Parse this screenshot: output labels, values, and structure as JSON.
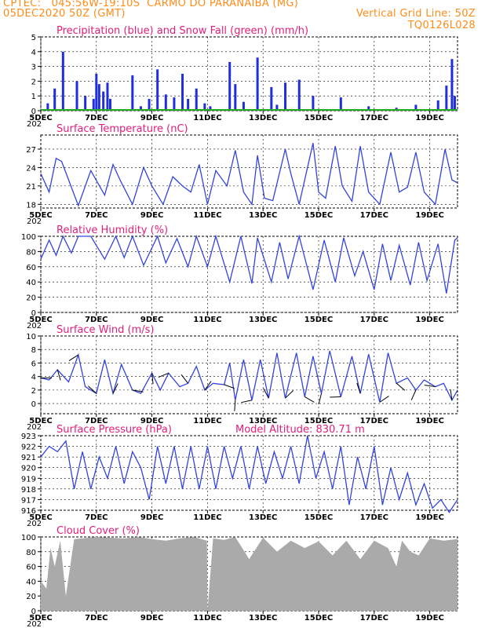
{
  "header": {
    "line1_left": "CPTEC:   045:56W-19:10S  CARMO DO PARANAIBA (MG)",
    "line2_left": "05DEC2020 50Z (GMT)",
    "line2_right": "Vertical Grid Line: 50Z",
    "line3_right": "TQ0126L028"
  },
  "colors": {
    "header": "#ff8c1a",
    "title": "#e0207a",
    "line": "#3344dd",
    "precip": "#1f2fdd",
    "snow": "#22aa22",
    "cloud": "#aaaaaa"
  },
  "x_axis": {
    "labels": [
      "5DEC",
      "7DEC",
      "9DEC",
      "11DEC",
      "13DEC",
      "15DEC",
      "17DEC",
      "19DEC"
    ],
    "label_days": [
      5,
      7,
      9,
      11,
      13,
      15,
      17,
      19
    ],
    "range_days": [
      5,
      20
    ],
    "year_stub": "202"
  },
  "chart_data": [
    {
      "type": "bar",
      "title": "Precipitation (blue) and Snow Fall (green) (mm/h)",
      "ylim": [
        0,
        5
      ],
      "yticks": [
        "0",
        "1",
        "2",
        "3",
        "4",
        "5"
      ],
      "series": [
        {
          "name": "Precipitation",
          "x_days": [
            5.25,
            5.5,
            5.8,
            6.3,
            6.6,
            6.9,
            7.0,
            7.1,
            7.25,
            7.4,
            7.5,
            8.3,
            8.6,
            8.9,
            9.2,
            9.5,
            9.8,
            10.1,
            10.3,
            10.6,
            10.9,
            11.1,
            11.8,
            12.0,
            12.3,
            12.8,
            13.3,
            13.5,
            13.8,
            14.3,
            14.8,
            15.8,
            16.8,
            17.8,
            18.5,
            19.3,
            19.6,
            19.8,
            19.9
          ],
          "values": [
            0.5,
            1.5,
            4.0,
            2.0,
            1.0,
            0.8,
            2.5,
            1.8,
            1.3,
            1.9,
            0.8,
            2.4,
            0.3,
            0.8,
            2.8,
            1.1,
            0.9,
            2.5,
            0.8,
            1.5,
            0.5,
            0.3,
            3.3,
            1.8,
            0.6,
            3.6,
            1.6,
            0.4,
            1.9,
            2.1,
            1.0,
            0.9,
            0.3,
            0.2,
            0.4,
            0.7,
            1.7,
            3.5,
            1.0
          ]
        },
        {
          "name": "Snow Fall",
          "x_days": [
            5,
            20
          ],
          "values": [
            0,
            0
          ]
        }
      ]
    },
    {
      "type": "line",
      "title": "Surface Temperature (nC)",
      "ylim": [
        17.4,
        29.3
      ],
      "yticks": [
        "18",
        "21",
        "24",
        "27"
      ],
      "series": [
        {
          "name": "Temperature",
          "x_days": [
            5.0,
            5.3,
            5.55,
            5.75,
            6.0,
            6.35,
            6.8,
            7.3,
            7.6,
            7.85,
            8.3,
            8.7,
            9.0,
            9.4,
            9.75,
            10.1,
            10.4,
            10.7,
            11.0,
            11.3,
            11.7,
            12.0,
            12.3,
            12.6,
            12.8,
            13.05,
            13.35,
            13.8,
            14.0,
            14.3,
            14.8,
            15.0,
            15.25,
            15.6,
            15.85,
            16.2,
            16.5,
            16.8,
            17.2,
            17.6,
            17.9,
            18.2,
            18.5,
            18.8,
            19.2,
            19.55,
            19.8,
            20.0
          ],
          "values": [
            23,
            20,
            25.5,
            25,
            22,
            17.8,
            23.5,
            19.5,
            24.5,
            22,
            18,
            24,
            21,
            18,
            22.5,
            21,
            20,
            24.5,
            18,
            23.5,
            21,
            26.8,
            20,
            18,
            26,
            19,
            18.6,
            27,
            23,
            18,
            28,
            20,
            19,
            27.5,
            21,
            18.5,
            27.5,
            20,
            18,
            26.5,
            20,
            20.8,
            26.5,
            20,
            18,
            27,
            22,
            21.5
          ]
        }
      ]
    },
    {
      "type": "line",
      "title": "Relative Humidity (%)",
      "ylim": [
        0,
        100
      ],
      "yticks": [
        "0",
        "20",
        "40",
        "60",
        "80",
        "100"
      ],
      "series": [
        {
          "name": "Humidity",
          "x_days": [
            5.0,
            5.3,
            5.55,
            5.8,
            6.1,
            6.35,
            6.8,
            7.3,
            7.7,
            8.0,
            8.3,
            8.7,
            9.2,
            9.5,
            9.9,
            10.3,
            10.6,
            11.0,
            11.3,
            11.8,
            12.2,
            12.6,
            12.8,
            13.3,
            13.6,
            13.9,
            14.3,
            14.8,
            15.2,
            15.6,
            15.9,
            16.3,
            16.6,
            17.0,
            17.3,
            17.6,
            17.9,
            18.3,
            18.6,
            18.9,
            19.3,
            19.6,
            19.9,
            20.0
          ],
          "values": [
            70,
            95,
            75,
            100,
            78,
            100,
            100,
            70,
            100,
            72,
            100,
            62,
            100,
            65,
            97,
            60,
            100,
            60,
            100,
            40,
            100,
            38,
            98,
            40,
            92,
            44,
            100,
            30,
            95,
            40,
            98,
            48,
            80,
            30,
            90,
            42,
            88,
            36,
            92,
            42,
            90,
            25,
            95,
            98
          ]
        }
      ]
    },
    {
      "type": "line",
      "title": "Surface Wind (m/s)",
      "ylim": [
        -1.5,
        10
      ],
      "yticks": [
        "0",
        "2",
        "4",
        "6",
        "8",
        "10"
      ],
      "series": [
        {
          "name": "Wind speed",
          "x_days": [
            5.0,
            5.3,
            5.6,
            6.0,
            6.35,
            6.6,
            7.0,
            7.3,
            7.6,
            7.9,
            8.3,
            8.6,
            9.0,
            9.3,
            9.6,
            10.0,
            10.3,
            10.6,
            10.9,
            11.2,
            11.6,
            11.8,
            12.0,
            12.3,
            12.6,
            12.9,
            13.2,
            13.5,
            13.8,
            14.2,
            14.5,
            14.8,
            15.1,
            15.4,
            15.8,
            16.2,
            16.5,
            16.8,
            17.2,
            17.5,
            17.8,
            18.2,
            18.5,
            18.8,
            19.2,
            19.5,
            19.8,
            20.0
          ],
          "values": [
            3.8,
            3.5,
            5.0,
            3.2,
            7.2,
            2.5,
            1.5,
            6.5,
            1.5,
            5.8,
            2.0,
            1.5,
            4.5,
            2.0,
            4.5,
            2.5,
            3.0,
            5.5,
            2.0,
            3.0,
            2.8,
            6.0,
            0.5,
            6.5,
            0.5,
            6.5,
            0.8,
            7.5,
            0.8,
            7.5,
            1.0,
            7.0,
            1.5,
            7.8,
            1.0,
            7.0,
            1.5,
            7.3,
            0.2,
            7.5,
            3.0,
            3.8,
            2.0,
            3.5,
            2.5,
            3.0,
            0.5,
            2.0
          ]
        }
      ]
    },
    {
      "type": "line",
      "title": "Surface Pressure (hPa)",
      "annotation": "Model Altitude: 830.71 m",
      "ylim": [
        916,
        923
      ],
      "yticks": [
        "916",
        "917",
        "918",
        "919",
        "920",
        "921",
        "922",
        "923"
      ],
      "series": [
        {
          "name": "Pressure",
          "x_days": [
            5.0,
            5.3,
            5.6,
            5.9,
            6.2,
            6.5,
            6.8,
            7.1,
            7.4,
            7.7,
            8.0,
            8.3,
            8.6,
            8.9,
            9.2,
            9.5,
            9.8,
            10.1,
            10.4,
            10.7,
            11.0,
            11.3,
            11.6,
            11.9,
            12.2,
            12.5,
            12.8,
            13.1,
            13.4,
            13.7,
            14.0,
            14.3,
            14.6,
            14.9,
            15.2,
            15.5,
            15.8,
            16.1,
            16.4,
            16.7,
            17.0,
            17.3,
            17.6,
            17.9,
            18.2,
            18.5,
            18.8,
            19.1,
            19.4,
            19.7,
            20.0
          ],
          "values": [
            921,
            922,
            921.5,
            922.5,
            918,
            921.5,
            918,
            921,
            919,
            922,
            918.5,
            921.5,
            920,
            917,
            922,
            918.5,
            922,
            918,
            922,
            918,
            922,
            918,
            922,
            919,
            922,
            918,
            922,
            918.5,
            921.5,
            919,
            922,
            918.5,
            923,
            919,
            921.5,
            918,
            922,
            916.5,
            921,
            918,
            922,
            916.5,
            920,
            917,
            919.5,
            916.5,
            918.5,
            916.2,
            917,
            915.8,
            917
          ]
        }
      ]
    },
    {
      "type": "area",
      "title": "Cloud Cover (%)",
      "ylim": [
        0,
        100
      ],
      "yticks": [
        "0",
        "20",
        "40",
        "60",
        "80",
        "100"
      ],
      "series": [
        {
          "name": "Cloud cover",
          "x_days": [
            5.0,
            5.2,
            5.35,
            5.5,
            5.7,
            5.9,
            6.2,
            7.0,
            8.0,
            8.5,
            9.0,
            9.5,
            10.0,
            10.5,
            10.98,
            11.0,
            11.2,
            11.6,
            12.0,
            12.5,
            13.0,
            13.5,
            14.0,
            14.5,
            15.0,
            15.5,
            16.0,
            16.5,
            17.0,
            17.5,
            17.8,
            18.0,
            18.3,
            18.6,
            19.0,
            19.5,
            20.0
          ],
          "values": [
            40,
            30,
            85,
            60,
            95,
            20,
            97,
            100,
            98,
            100,
            97,
            95,
            98,
            100,
            95,
            0,
            98,
            96,
            100,
            70,
            99,
            80,
            95,
            85,
            94,
            75,
            95,
            70,
            95,
            85,
            60,
            95,
            80,
            75,
            98,
            95,
            97
          ]
        }
      ]
    }
  ]
}
